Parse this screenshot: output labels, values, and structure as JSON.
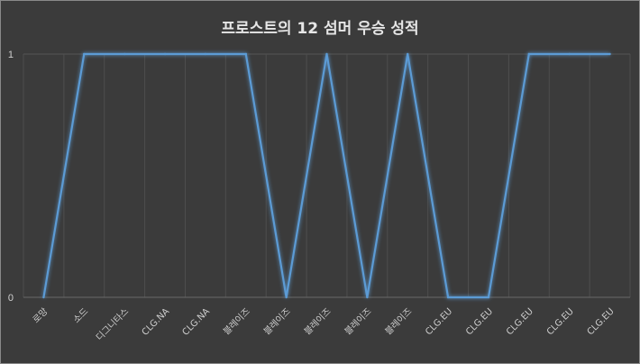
{
  "chart_data": {
    "type": "line",
    "title": "프로스트의 12 섬머 우승 성적",
    "xlabel": "",
    "ylabel": "",
    "categories": [
      "로망",
      "소드",
      "디그니타스",
      "CLG.NA",
      "CLG.NA",
      "블레이즈",
      "블레이즈",
      "블레이즈",
      "블레이즈",
      "블레이즈",
      "CLG.EU",
      "CLG.EU",
      "CLG.EU",
      "CLG.EU",
      "CLG.EU"
    ],
    "values": [
      0,
      1,
      1,
      1,
      1,
      1,
      0,
      1,
      0,
      1,
      0,
      0,
      1,
      1,
      1
    ],
    "ylim": [
      0,
      1
    ],
    "yticks": [
      "0",
      "1"
    ],
    "grid": true,
    "line_color": "#5b9bd5",
    "background_color": "#3b3b3b"
  }
}
